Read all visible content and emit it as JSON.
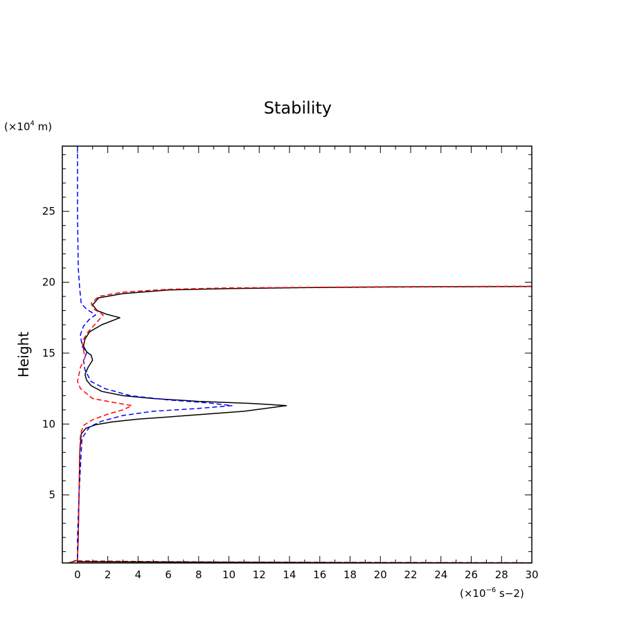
{
  "chart_data": {
    "type": "line",
    "title": "Stability",
    "ylabel": "Height",
    "y_unit": {
      "prefix": "(×10",
      "exp": "4",
      "suffix": " m)"
    },
    "x_unit": {
      "prefix": "(×10",
      "exp": "−6",
      "suffix": " s−2)"
    },
    "xlim": [
      -1,
      30
    ],
    "ylim": [
      0.2,
      29.6
    ],
    "x_ticks": [
      0,
      2,
      4,
      6,
      8,
      10,
      12,
      14,
      16,
      18,
      20,
      22,
      24,
      26,
      28,
      30
    ],
    "y_ticks": [
      5,
      10,
      15,
      20,
      25
    ],
    "series": [
      {
        "name": "black-solid",
        "color": "#000000",
        "dash": "",
        "points": [
          [
            -0.6,
            0.2
          ],
          [
            -0.3,
            0.3
          ],
          [
            0.0,
            0.4
          ],
          [
            0.05,
            2
          ],
          [
            0.1,
            5
          ],
          [
            0.15,
            8
          ],
          [
            0.25,
            9.3
          ],
          [
            0.55,
            9.7
          ],
          [
            1.2,
            9.95
          ],
          [
            2.3,
            10.15
          ],
          [
            4.0,
            10.35
          ],
          [
            6.0,
            10.5
          ],
          [
            8.5,
            10.7
          ],
          [
            11.0,
            10.9
          ],
          [
            13.8,
            11.3
          ],
          [
            11.5,
            11.45
          ],
          [
            8.0,
            11.6
          ],
          [
            5.0,
            11.8
          ],
          [
            3.0,
            12.0
          ],
          [
            1.6,
            12.3
          ],
          [
            0.9,
            12.7
          ],
          [
            0.6,
            13.1
          ],
          [
            0.5,
            13.5
          ],
          [
            0.7,
            14.0
          ],
          [
            1.0,
            14.5
          ],
          [
            0.9,
            14.85
          ],
          [
            0.6,
            15.1
          ],
          [
            0.4,
            15.5
          ],
          [
            0.5,
            16.0
          ],
          [
            0.8,
            16.5
          ],
          [
            1.6,
            17.0
          ],
          [
            2.8,
            17.5
          ],
          [
            1.9,
            17.75
          ],
          [
            1.3,
            18.0
          ],
          [
            1.0,
            18.4
          ],
          [
            1.4,
            18.9
          ],
          [
            3.0,
            19.2
          ],
          [
            6.0,
            19.45
          ],
          [
            10.0,
            19.55
          ],
          [
            15.0,
            19.62
          ],
          [
            20.0,
            19.66
          ],
          [
            25.0,
            19.68
          ],
          [
            30.0,
            19.7
          ]
        ]
      },
      {
        "name": "blue-dashed",
        "color": "#0000ff",
        "dash": "7,4",
        "points": [
          [
            0.0,
            29.6
          ],
          [
            0.0,
            25
          ],
          [
            0.05,
            21
          ],
          [
            0.15,
            19.5
          ],
          [
            0.25,
            18.5
          ],
          [
            0.6,
            18.1
          ],
          [
            1.2,
            17.7
          ],
          [
            0.8,
            17.4
          ],
          [
            0.4,
            16.9
          ],
          [
            0.2,
            16.3
          ],
          [
            0.3,
            15.5
          ],
          [
            0.6,
            15.0
          ],
          [
            0.4,
            14.5
          ],
          [
            0.5,
            13.8
          ],
          [
            0.9,
            13.0
          ],
          [
            1.8,
            12.5
          ],
          [
            3.5,
            12.0
          ],
          [
            6.0,
            11.7
          ],
          [
            8.5,
            11.5
          ],
          [
            10.2,
            11.3
          ],
          [
            8.0,
            11.1
          ],
          [
            5.0,
            10.9
          ],
          [
            3.0,
            10.6
          ],
          [
            1.6,
            10.2
          ],
          [
            0.8,
            9.8
          ],
          [
            0.3,
            9.0
          ],
          [
            0.2,
            7.0
          ],
          [
            0.1,
            5.0
          ],
          [
            0.0,
            2.0
          ],
          [
            0.0,
            0.2
          ]
        ]
      },
      {
        "name": "red-dashed",
        "color": "#ff0000",
        "dash": "7,4",
        "points": [
          [
            -0.6,
            0.2
          ],
          [
            -0.3,
            0.3
          ],
          [
            0.0,
            0.4
          ],
          [
            0.05,
            2
          ],
          [
            0.1,
            5
          ],
          [
            0.15,
            8
          ],
          [
            0.2,
            9.3
          ],
          [
            0.4,
            9.9
          ],
          [
            1.0,
            10.3
          ],
          [
            2.0,
            10.7
          ],
          [
            3.0,
            11.0
          ],
          [
            3.6,
            11.3
          ],
          [
            2.5,
            11.5
          ],
          [
            1.0,
            11.8
          ],
          [
            0.2,
            12.5
          ],
          [
            0.0,
            13.0
          ],
          [
            0.2,
            14.0
          ],
          [
            0.5,
            14.7
          ],
          [
            0.4,
            15.2
          ],
          [
            0.3,
            15.8
          ],
          [
            0.7,
            16.5
          ],
          [
            1.3,
            17.2
          ],
          [
            1.7,
            17.7
          ],
          [
            1.1,
            18.1
          ],
          [
            0.9,
            18.5
          ],
          [
            1.4,
            19.0
          ],
          [
            3.0,
            19.3
          ],
          [
            6.0,
            19.5
          ],
          [
            10.0,
            19.6
          ],
          [
            20.0,
            19.68
          ],
          [
            30.0,
            19.72
          ]
        ]
      },
      {
        "name": "red-dashed-surface",
        "color": "#ff0000",
        "dash": "7,4",
        "points": [
          [
            0.0,
            0.35
          ],
          [
            5.0,
            0.3
          ],
          [
            10.0,
            0.27
          ],
          [
            15.0,
            0.25
          ],
          [
            20.0,
            0.24
          ],
          [
            25.0,
            0.23
          ],
          [
            30.0,
            0.22
          ]
        ]
      },
      {
        "name": "black-solid-surface",
        "color": "#000000",
        "dash": "",
        "points": [
          [
            0.0,
            0.3
          ],
          [
            10.0,
            0.25
          ],
          [
            20.0,
            0.22
          ],
          [
            30.0,
            0.2
          ]
        ]
      }
    ]
  }
}
